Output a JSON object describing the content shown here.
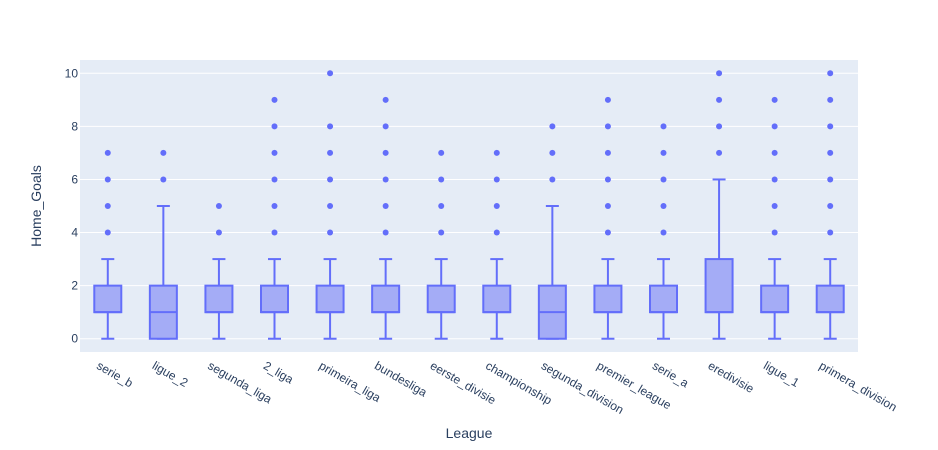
{
  "chart_data": {
    "type": "box",
    "xlabel": "League",
    "ylabel": "Home_Goals",
    "ylim": [
      -0.5,
      10.5
    ],
    "yticks": [
      0,
      2,
      4,
      6,
      8,
      10
    ],
    "grid": true,
    "colors": {
      "box_fill": "#a4acf6",
      "box_line": "#636efa",
      "plot_bg": "#e5ecf6",
      "grid": "#ffffff",
      "text": "#2a3f5f"
    },
    "categories": [
      "serie_b",
      "ligue_2",
      "segunda_liga",
      "2_liga",
      "primeira_liga",
      "bundesliga",
      "eerste_divisie",
      "championship",
      "segunda_division",
      "premier_league",
      "serie_a",
      "eredivisie",
      "ligue_1",
      "primera_division"
    ],
    "boxes": [
      {
        "category": "serie_b",
        "min": 0,
        "q1": 1,
        "median": 1,
        "q3": 2,
        "max": 3,
        "outliers": [
          4,
          5,
          6,
          7
        ]
      },
      {
        "category": "ligue_2",
        "min": 0,
        "q1": 0,
        "median": 1,
        "q3": 2,
        "max": 5,
        "outliers": [
          6,
          7
        ]
      },
      {
        "category": "segunda_liga",
        "min": 0,
        "q1": 1,
        "median": 1,
        "q3": 2,
        "max": 3,
        "outliers": [
          4,
          5
        ]
      },
      {
        "category": "2_liga",
        "min": 0,
        "q1": 1,
        "median": 1,
        "q3": 2,
        "max": 3,
        "outliers": [
          4,
          5,
          6,
          7,
          8,
          9
        ]
      },
      {
        "category": "primeira_liga",
        "min": 0,
        "q1": 1,
        "median": 1,
        "q3": 2,
        "max": 3,
        "outliers": [
          4,
          5,
          6,
          7,
          8,
          10
        ]
      },
      {
        "category": "bundesliga",
        "min": 0,
        "q1": 1,
        "median": 1,
        "q3": 2,
        "max": 3,
        "outliers": [
          4,
          5,
          6,
          7,
          8,
          9
        ]
      },
      {
        "category": "eerste_divisie",
        "min": 0,
        "q1": 1,
        "median": 1,
        "q3": 2,
        "max": 3,
        "outliers": [
          4,
          5,
          6,
          7
        ]
      },
      {
        "category": "championship",
        "min": 0,
        "q1": 1,
        "median": 1,
        "q3": 2,
        "max": 3,
        "outliers": [
          4,
          5,
          6,
          7
        ]
      },
      {
        "category": "segunda_division",
        "min": 0,
        "q1": 0,
        "median": 1,
        "q3": 2,
        "max": 5,
        "outliers": [
          6,
          7,
          8
        ]
      },
      {
        "category": "premier_league",
        "min": 0,
        "q1": 1,
        "median": 1,
        "q3": 2,
        "max": 3,
        "outliers": [
          4,
          5,
          6,
          7,
          8,
          9
        ]
      },
      {
        "category": "serie_a",
        "min": 0,
        "q1": 1,
        "median": 1,
        "q3": 2,
        "max": 3,
        "outliers": [
          4,
          5,
          6,
          7,
          8
        ]
      },
      {
        "category": "eredivisie",
        "min": 0,
        "q1": 1,
        "median": 1,
        "q3": 3,
        "max": 6,
        "outliers": [
          7,
          8,
          9,
          10
        ]
      },
      {
        "category": "ligue_1",
        "min": 0,
        "q1": 1,
        "median": 1,
        "q3": 2,
        "max": 3,
        "outliers": [
          4,
          5,
          6,
          7,
          8,
          9
        ]
      },
      {
        "category": "primera_division",
        "min": 0,
        "q1": 1,
        "median": 1,
        "q3": 2,
        "max": 3,
        "outliers": [
          4,
          5,
          6,
          7,
          8,
          9,
          10
        ]
      }
    ]
  }
}
